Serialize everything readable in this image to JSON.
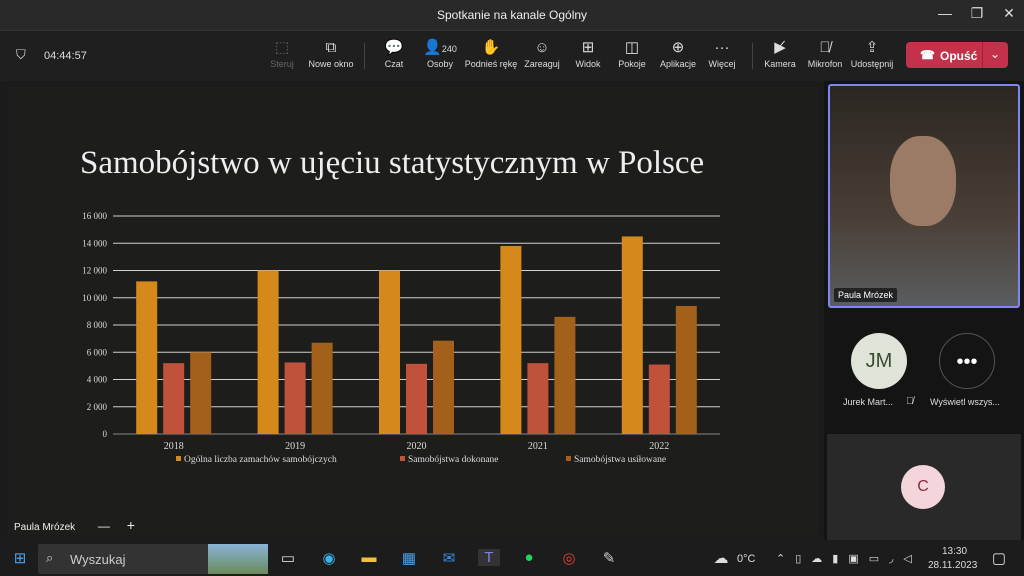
{
  "window": {
    "title": "Spotkanie na kanale Ogólny"
  },
  "toolbar": {
    "timer": "04:44:57",
    "items": [
      {
        "label": "Steruj",
        "icon": "control-icon",
        "disabled": true
      },
      {
        "label": "Nowe okno",
        "icon": "new-window-icon"
      },
      {
        "label": "Czat",
        "icon": "chat-icon"
      },
      {
        "label": "Osoby",
        "icon": "people-icon",
        "count": "240"
      },
      {
        "label": "Podnieś rękę",
        "icon": "raise-hand-icon"
      },
      {
        "label": "Zareaguj",
        "icon": "react-icon"
      },
      {
        "label": "Widok",
        "icon": "view-icon"
      },
      {
        "label": "Pokoje",
        "icon": "rooms-icon"
      },
      {
        "label": "Aplikacje",
        "icon": "apps-icon"
      },
      {
        "label": "Więcej",
        "icon": "more-icon"
      },
      {
        "label": "Kamera",
        "icon": "camera-off-icon"
      },
      {
        "label": "Mikrofon",
        "icon": "mic-off-icon"
      },
      {
        "label": "Udostępnij",
        "icon": "share-icon"
      }
    ],
    "leave_label": "Opuść"
  },
  "share": {
    "presenter": "Paula Mrózek",
    "slide_title": "Samobójstwo w ujęciu statystycznym  w Polsce"
  },
  "chart_data": {
    "type": "bar",
    "title": "",
    "categories": [
      "2018",
      "2019",
      "2020",
      "2021",
      "2022"
    ],
    "ylim": [
      0,
      16000
    ],
    "yticks": [
      "0",
      "2 000",
      "4 000",
      "6 000",
      "8 000",
      "10 000",
      "12 000",
      "14 000",
      "16 000"
    ],
    "grid": true,
    "legend": "bottom",
    "series": [
      {
        "name": "Ogólna liczba zamachów samobójczych",
        "values": [
          11200,
          12000,
          12000,
          13800,
          14500
        ],
        "color": "#d4891a"
      },
      {
        "name": "Samobójstwa dokonane",
        "values": [
          5200,
          5250,
          5150,
          5200,
          5100
        ],
        "color": "#c0513a"
      },
      {
        "name": "Samobójstwa usiłowane",
        "values": [
          6000,
          6700,
          6850,
          8600,
          9400
        ],
        "color": "#a2601a"
      }
    ]
  },
  "participants": {
    "video": {
      "name": "Paula Mrózek"
    },
    "jm": {
      "initials": "JM",
      "name": "Jurek Mart..."
    },
    "more": {
      "label": "Wyświetl wszys..."
    },
    "c": {
      "initials": "C"
    }
  },
  "taskbar": {
    "search_placeholder": "Wyszukaj",
    "temp": "0°C",
    "time": "13:30",
    "date": "28.11.2023"
  }
}
